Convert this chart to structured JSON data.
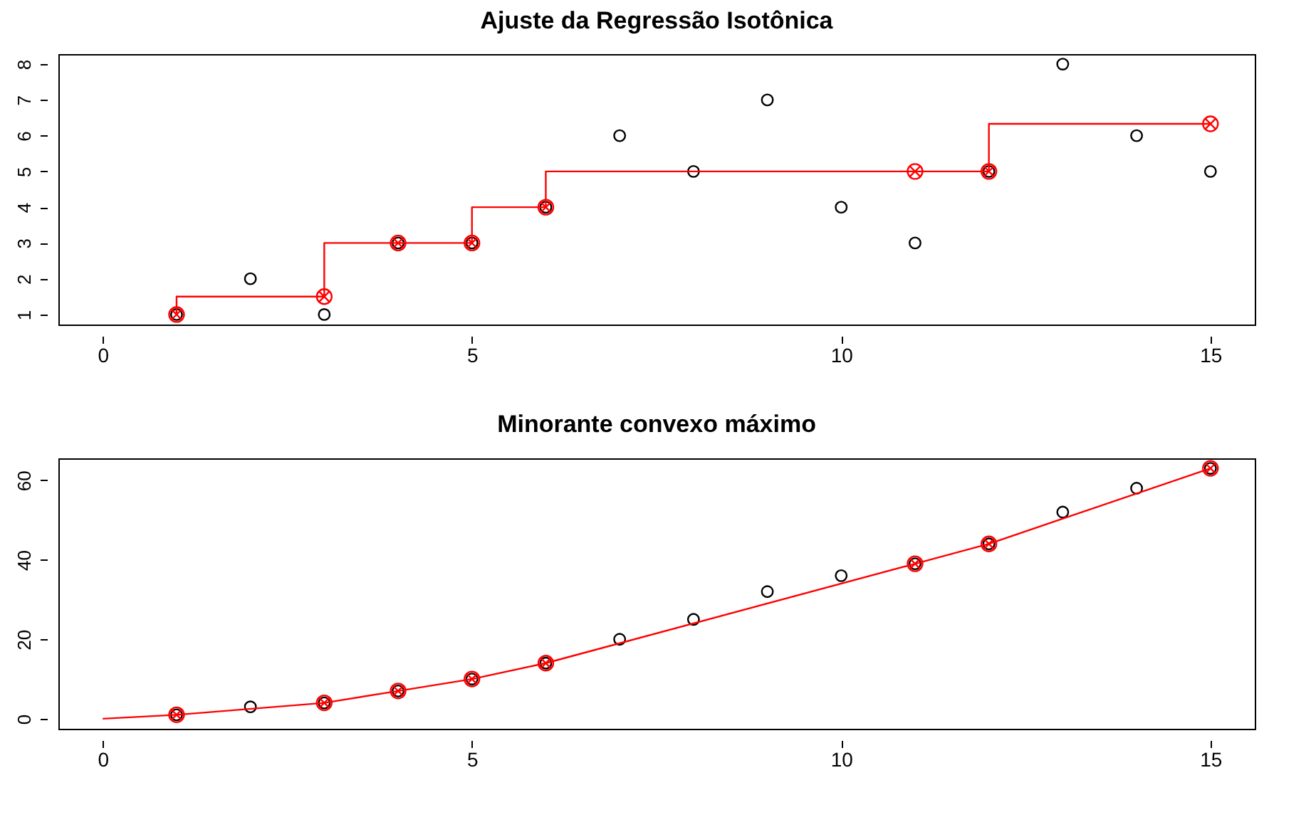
{
  "chart_data": [
    {
      "type": "scatter",
      "title": "Ajuste da Regressão Isotônica",
      "x": [
        1,
        2,
        3,
        4,
        5,
        6,
        7,
        8,
        9,
        10,
        11,
        12,
        13,
        14,
        15
      ],
      "xlim": [
        -0.6,
        15.6
      ],
      "xticks": [
        0,
        5,
        10,
        15
      ],
      "ylim": [
        0.72,
        8.28
      ],
      "yticks": [
        1,
        2,
        3,
        4,
        5,
        6,
        7,
        8
      ],
      "grid": false,
      "series": [
        {
          "marker": "circle",
          "color": "#000000",
          "values": [
            1,
            2,
            1,
            3,
            3,
            4,
            6,
            5,
            7,
            4,
            3,
            5,
            8,
            6,
            5
          ]
        },
        {
          "type": "step",
          "color": "#ff0000",
          "values": [
            1,
            1.5,
            1.5,
            3,
            3,
            4,
            5,
            5,
            5,
            5,
            5,
            5,
            6.33,
            6.33,
            6.33
          ]
        },
        {
          "marker": "cross",
          "color": "#ff0000",
          "x": [
            1,
            3,
            4,
            5,
            6,
            11,
            12,
            15
          ],
          "values": [
            1,
            1.5,
            3,
            3,
            4,
            5,
            5,
            6.33
          ]
        }
      ]
    },
    {
      "type": "scatter",
      "title": "Minorante convexo máximo",
      "x": [
        1,
        2,
        3,
        4,
        5,
        6,
        7,
        8,
        9,
        10,
        11,
        12,
        13,
        14,
        15
      ],
      "xlim": [
        -0.6,
        15.6
      ],
      "xticks": [
        0,
        5,
        10,
        15
      ],
      "ylim": [
        -2.52,
        65.52
      ],
      "yticks": [
        0,
        20,
        40,
        60
      ],
      "grid": false,
      "series": [
        {
          "marker": "circle",
          "color": "#000000",
          "values": [
            1,
            3,
            4,
            7,
            10,
            14,
            20,
            25,
            32,
            36,
            39,
            44,
            52,
            58,
            63
          ]
        },
        {
          "type": "line",
          "color": "#ff0000",
          "x": [
            0,
            1,
            3,
            4,
            5,
            6,
            11,
            12,
            15
          ],
          "values": [
            0,
            1,
            4,
            7,
            10,
            14,
            39,
            44,
            63
          ]
        },
        {
          "marker": "cross",
          "color": "#ff0000",
          "x": [
            1,
            3,
            4,
            5,
            6,
            11,
            12,
            15
          ],
          "values": [
            1,
            4,
            7,
            10,
            14,
            39,
            44,
            63
          ]
        }
      ]
    }
  ]
}
